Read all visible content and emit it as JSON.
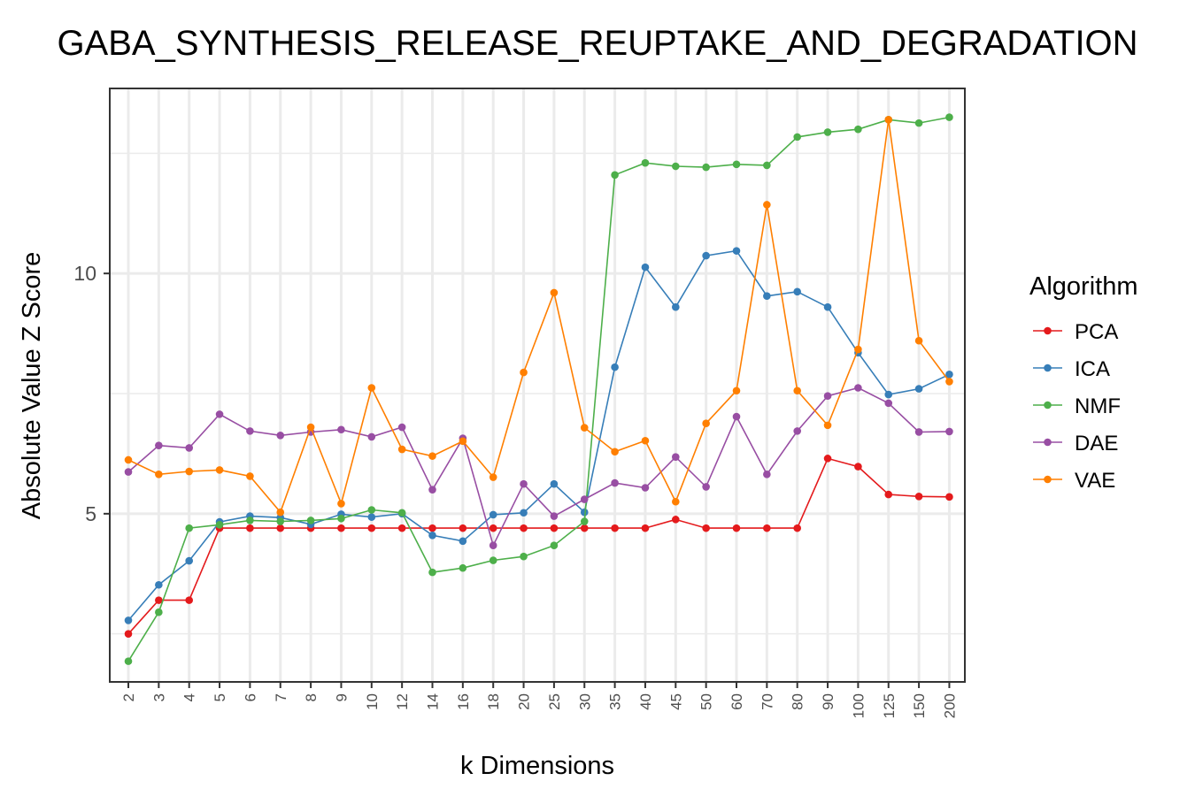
{
  "chart_data": {
    "type": "line",
    "title": "GABA_SYNTHESIS_RELEASE_REUPTAKE_AND_DEGRADATION",
    "xlabel": "k Dimensions",
    "ylabel": "Absolute Value Z Score",
    "categories": [
      "2",
      "3",
      "4",
      "5",
      "6",
      "7",
      "8",
      "9",
      "10",
      "12",
      "14",
      "16",
      "18",
      "20",
      "25",
      "30",
      "35",
      "40",
      "45",
      "50",
      "60",
      "70",
      "80",
      "90",
      "100",
      "125",
      "150",
      "200"
    ],
    "ylim": [
      1.5,
      13.85
    ],
    "y_ticks": [
      5,
      10
    ],
    "y_tick_labels": [
      "5",
      "10"
    ],
    "grid": true,
    "legend_title": "Algorithm",
    "legend_position": "right",
    "series": [
      {
        "name": "PCA",
        "color": "#E41A1C",
        "values": [
          2.5,
          3.2,
          3.2,
          4.7,
          4.7,
          4.7,
          4.7,
          4.7,
          4.7,
          4.7,
          4.7,
          4.7,
          4.7,
          4.7,
          4.7,
          4.7,
          4.7,
          4.7,
          4.88,
          4.7,
          4.7,
          4.7,
          4.7,
          6.15,
          5.98,
          5.4,
          5.36,
          5.35
        ]
      },
      {
        "name": "ICA",
        "color": "#377EB8",
        "values": [
          2.78,
          3.52,
          4.02,
          4.83,
          4.95,
          4.92,
          4.78,
          4.99,
          4.93,
          5.0,
          4.55,
          4.43,
          4.98,
          5.02,
          5.62,
          5.03,
          8.05,
          10.13,
          9.3,
          10.37,
          10.47,
          9.53,
          9.62,
          9.3,
          8.35,
          7.48,
          7.6,
          7.9
        ]
      },
      {
        "name": "NMF",
        "color": "#4DAF4A",
        "values": [
          1.93,
          2.95,
          4.7,
          4.77,
          4.86,
          4.84,
          4.86,
          4.9,
          5.08,
          5.02,
          3.78,
          3.87,
          4.03,
          4.11,
          4.34,
          4.84,
          12.05,
          12.3,
          12.23,
          12.21,
          12.27,
          12.25,
          12.84,
          12.94,
          13.0,
          13.2,
          13.13,
          13.25
        ]
      },
      {
        "name": "DAE",
        "color": "#984EA3",
        "values": [
          5.87,
          6.42,
          6.37,
          7.07,
          6.72,
          6.63,
          6.7,
          6.75,
          6.6,
          6.8,
          5.5,
          6.57,
          4.34,
          5.62,
          4.95,
          5.3,
          5.64,
          5.54,
          6.18,
          5.56,
          7.02,
          5.82,
          6.72,
          7.45,
          7.62,
          7.3,
          6.7,
          6.71
        ]
      },
      {
        "name": "VAE",
        "color": "#FF7F00",
        "values": [
          6.12,
          5.82,
          5.88,
          5.91,
          5.78,
          5.03,
          6.8,
          5.21,
          7.62,
          6.34,
          6.2,
          6.51,
          5.76,
          7.94,
          9.6,
          6.79,
          6.29,
          6.52,
          5.25,
          6.88,
          7.56,
          11.43,
          7.56,
          6.84,
          8.42,
          13.2,
          8.6,
          7.75
        ]
      }
    ]
  }
}
